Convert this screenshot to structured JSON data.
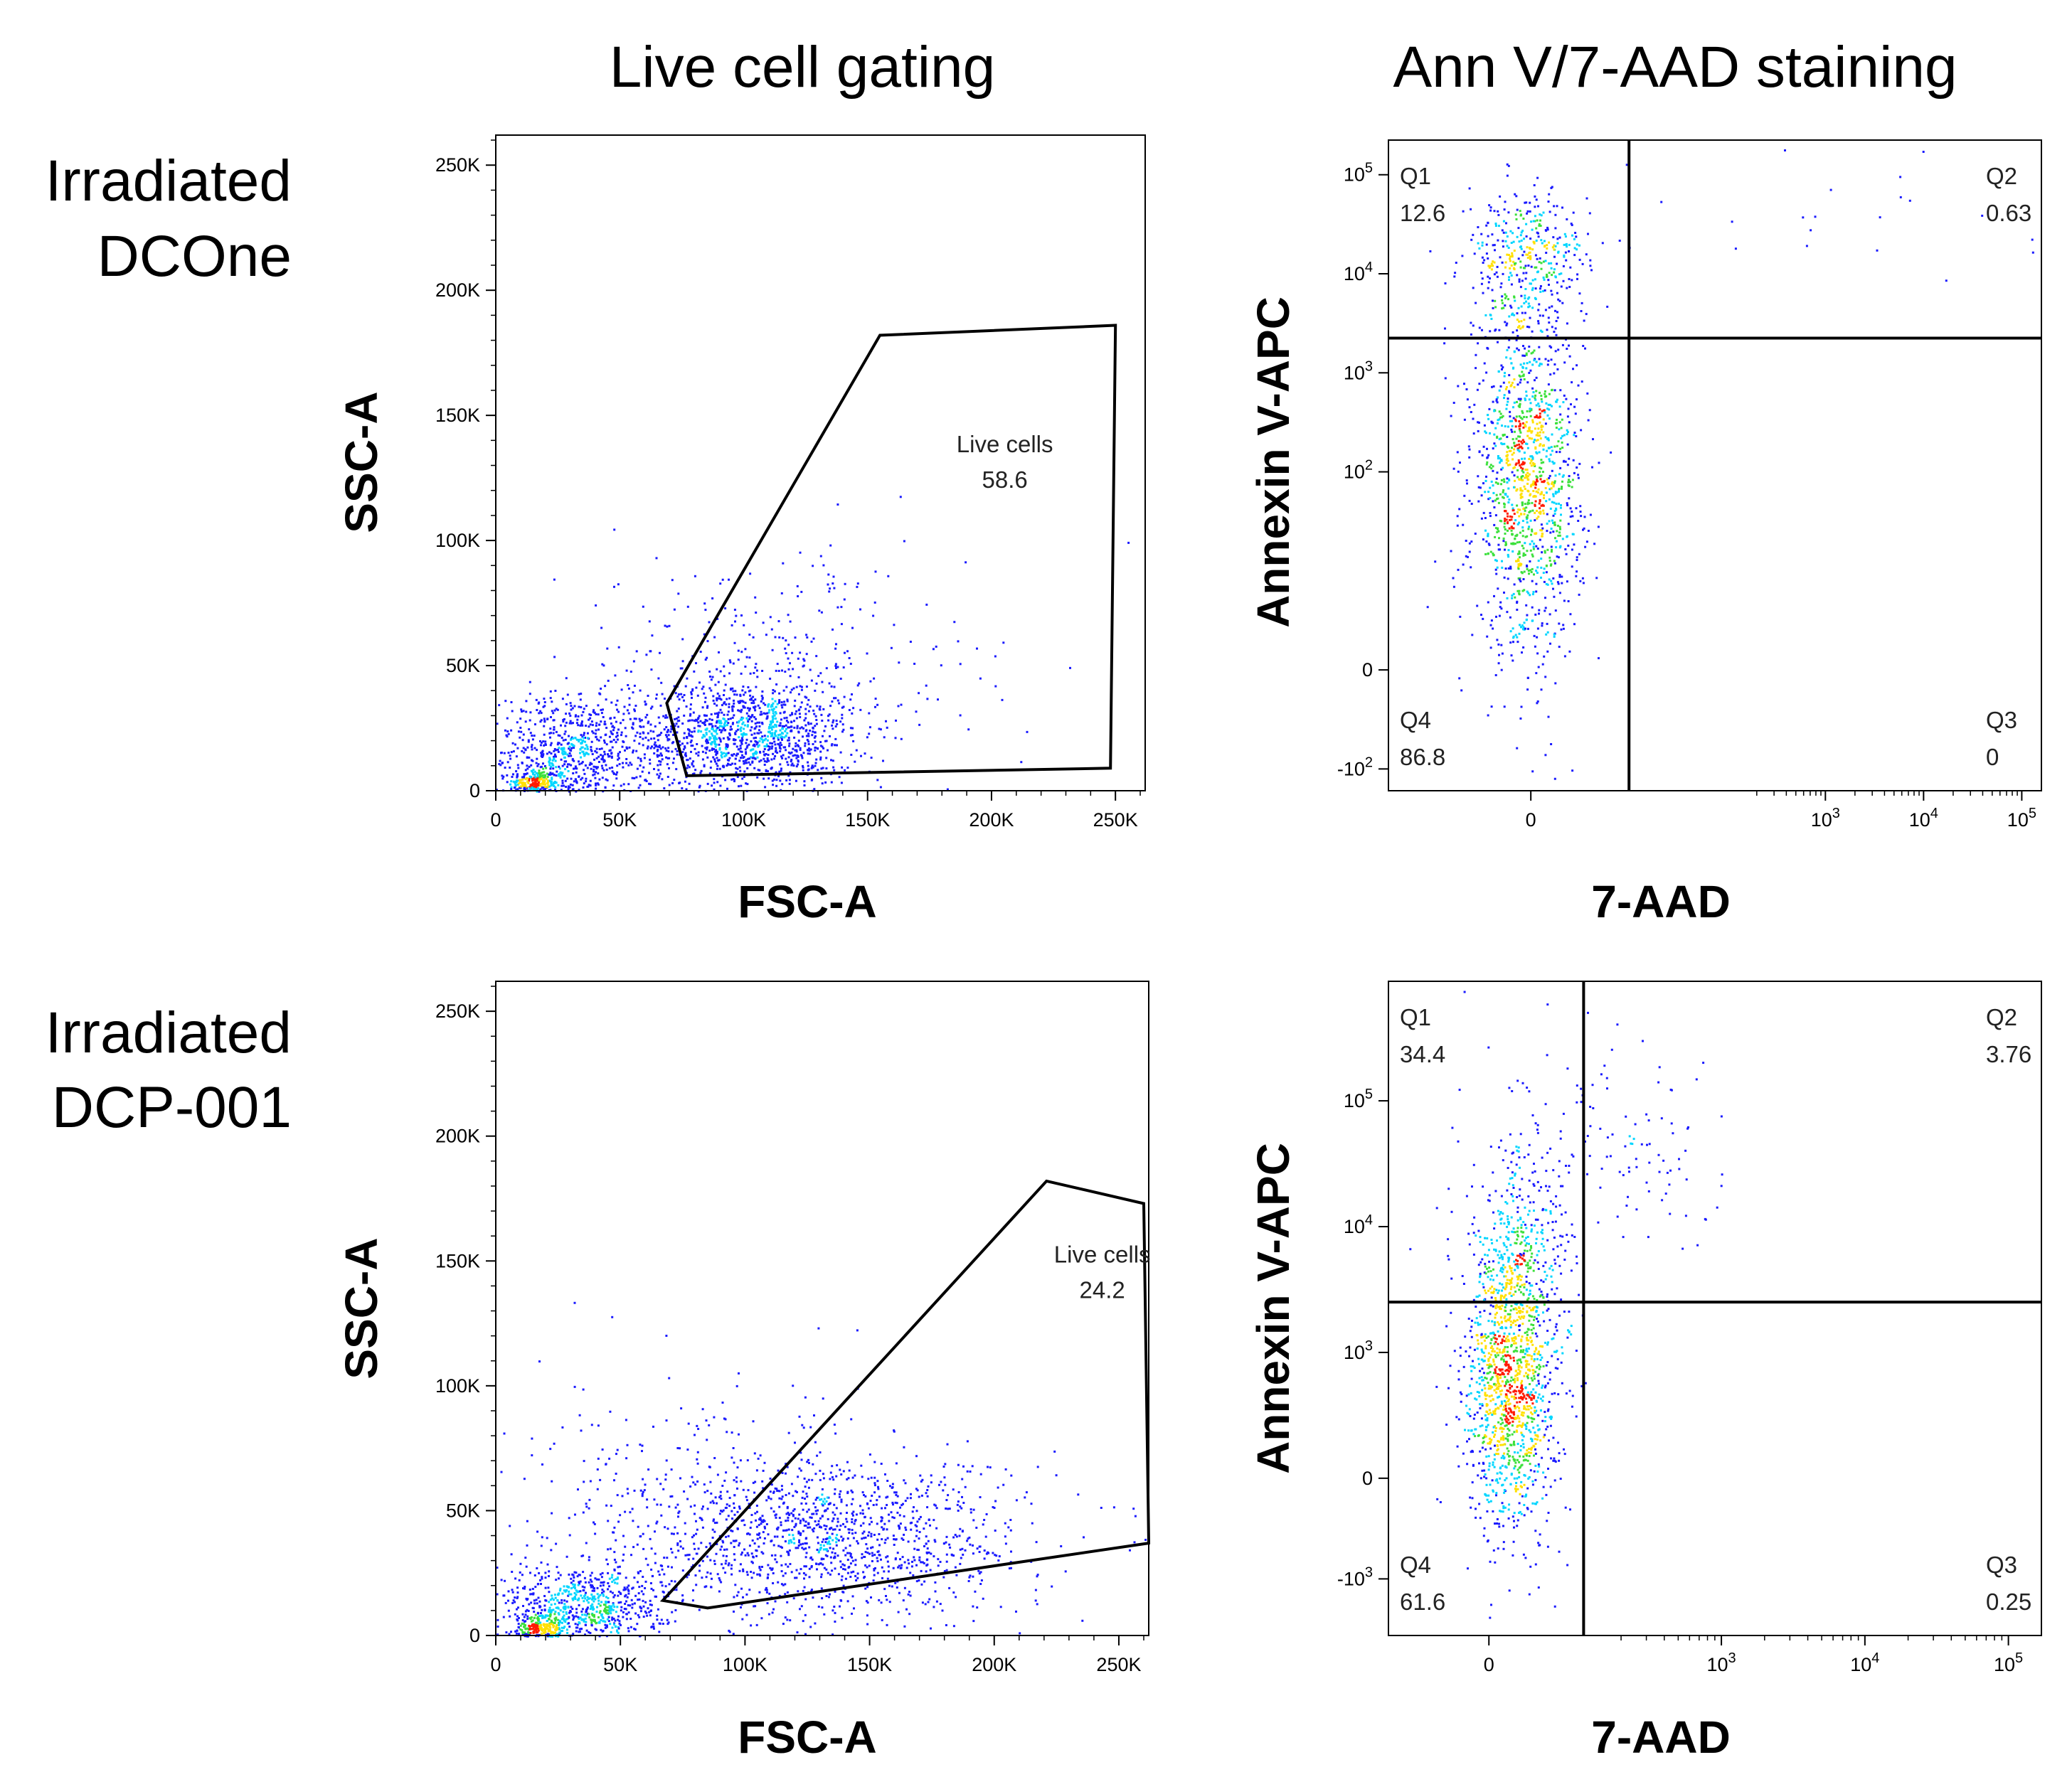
{
  "column_titles": {
    "live": "Live cell gating",
    "annv": "Ann V/7-AAD staining"
  },
  "rows": [
    {
      "label_line1": "Irradiated",
      "label_line2": "DCOne"
    },
    {
      "label_line1": "Irradiated",
      "label_line2": "DCP-001"
    }
  ],
  "colors": {
    "dot_low": "#1a1aff",
    "dot_mid": "#00d6ff",
    "dot_high": "#3be03b",
    "dot_peak": "#ffe000",
    "dot_max": "#ff1a00",
    "frame": "#000000"
  },
  "chart_data": [
    {
      "type": "scatter",
      "name": "DCOne live cell gating",
      "xlabel": "FSC-A",
      "ylabel": "SSC-A",
      "xlim": [
        0,
        262000
      ],
      "ylim": [
        0,
        262000
      ],
      "x_ticks": [
        {
          "v": 0,
          "label": "0"
        },
        {
          "v": 50000,
          "label": "50K"
        },
        {
          "v": 100000,
          "label": "100K"
        },
        {
          "v": 150000,
          "label": "150K"
        },
        {
          "v": 200000,
          "label": "200K"
        },
        {
          "v": 250000,
          "label": "250K"
        }
      ],
      "y_ticks": [
        {
          "v": 0,
          "label": "0"
        },
        {
          "v": 50000,
          "label": "50K"
        },
        {
          "v": 100000,
          "label": "100K"
        },
        {
          "v": 150000,
          "label": "150K"
        },
        {
          "v": 200000,
          "label": "200K"
        },
        {
          "v": 250000,
          "label": "250K"
        }
      ],
      "gate": {
        "name": "Live cells",
        "percent": "58.6",
        "polygon": [
          [
            69000,
            35000
          ],
          [
            155000,
            182000
          ],
          [
            250000,
            186000
          ],
          [
            248000,
            9000
          ],
          [
            77000,
            6000
          ]
        ]
      },
      "populations": [
        {
          "cx": 15000,
          "cy": 3000,
          "sx": 5000,
          "sy": 3000,
          "n": 260
        },
        {
          "cx": 30000,
          "cy": 15000,
          "sx": 16000,
          "sy": 12000,
          "n": 750
        },
        {
          "cx": 100000,
          "cy": 22000,
          "sx": 22000,
          "sy": 11000,
          "n": 1150
        },
        {
          "cx": 110000,
          "cy": 45000,
          "sx": 40000,
          "sy": 25000,
          "n": 380
        }
      ]
    },
    {
      "type": "scatter",
      "name": "DCOne Annexin V / 7-AAD",
      "xlabel": "7-AAD",
      "ylabel": "Annexin V-APC",
      "xlim": [
        -1.45,
        5.2
      ],
      "ylim": [
        -1.22,
        5.35
      ],
      "x_ticks": [
        {
          "v": 0,
          "label": "0"
        },
        {
          "v": 3,
          "label": "10^3"
        },
        {
          "v": 4,
          "label": "10^4"
        },
        {
          "v": 5,
          "label": "10^5"
        }
      ],
      "y_ticks": [
        {
          "v": -1,
          "label": "-10^2"
        },
        {
          "v": 0,
          "label": "0"
        },
        {
          "v": 2,
          "label": "10^2"
        },
        {
          "v": 3,
          "label": "10^3"
        },
        {
          "v": 4,
          "label": "10^4"
        },
        {
          "v": 5,
          "label": "10^5"
        }
      ],
      "quadrant_gate": {
        "x": 1.0,
        "y": 3.35
      },
      "quadrants": [
        {
          "id": "Q1",
          "value": "12.6",
          "pos": "top-left"
        },
        {
          "id": "Q2",
          "value": "0.63",
          "pos": "top-right"
        },
        {
          "id": "Q3",
          "value": "0",
          "pos": "bottom-right"
        },
        {
          "id": "Q4",
          "value": "86.8",
          "pos": "bottom-left"
        }
      ],
      "populations": [
        {
          "cx": -0.05,
          "cy": 1.9,
          "sx": 0.28,
          "sy": 0.85,
          "n": 1300
        },
        {
          "cx": -0.05,
          "cy": 4.15,
          "sx": 0.32,
          "sy": 0.35,
          "n": 380
        },
        {
          "cx": 3.0,
          "cy": 4.6,
          "sx": 1.1,
          "sy": 0.35,
          "n": 22
        }
      ]
    },
    {
      "type": "scatter",
      "name": "DCP-001 live cell gating",
      "xlabel": "FSC-A",
      "ylabel": "SSC-A",
      "xlim": [
        0,
        262000
      ],
      "ylim": [
        0,
        262000
      ],
      "x_ticks": [
        {
          "v": 0,
          "label": "0"
        },
        {
          "v": 50000,
          "label": "50K"
        },
        {
          "v": 100000,
          "label": "100K"
        },
        {
          "v": 150000,
          "label": "150K"
        },
        {
          "v": 200000,
          "label": "200K"
        },
        {
          "v": 250000,
          "label": "250K"
        }
      ],
      "y_ticks": [
        {
          "v": 0,
          "label": "0"
        },
        {
          "v": 50000,
          "label": "50K"
        },
        {
          "v": 100000,
          "label": "100K"
        },
        {
          "v": 150000,
          "label": "150K"
        },
        {
          "v": 200000,
          "label": "200K"
        },
        {
          "v": 250000,
          "label": "250K"
        }
      ],
      "gate": {
        "name": "Live cells",
        "percent": "24.2",
        "polygon": [
          [
            67000,
            14000
          ],
          [
            221000,
            182000
          ],
          [
            260000,
            173000
          ],
          [
            262000,
            37000
          ],
          [
            85000,
            11000
          ]
        ]
      },
      "populations": [
        {
          "cx": 18000,
          "cy": 3000,
          "sx": 6000,
          "sy": 3000,
          "n": 260
        },
        {
          "cx": 35000,
          "cy": 12000,
          "sx": 16000,
          "sy": 9000,
          "n": 700
        },
        {
          "cx": 135000,
          "cy": 40000,
          "sx": 38000,
          "sy": 16000,
          "n": 1200
        },
        {
          "cx": 80000,
          "cy": 45000,
          "sx": 40000,
          "sy": 28000,
          "n": 320
        }
      ]
    },
    {
      "type": "scatter",
      "name": "DCP-001 Annexin V / 7-AAD",
      "xlabel": "7-AAD",
      "ylabel": "Annexin V-APC",
      "xlim": [
        -0.7,
        3.85
      ],
      "ylim": [
        -1.25,
        3.95
      ],
      "x_ticks": [
        {
          "v": 0,
          "label": "0"
        },
        {
          "v": 1.62,
          "label": "10^3"
        },
        {
          "v": 2.62,
          "label": "10^4"
        },
        {
          "v": 3.62,
          "label": "10^5"
        }
      ],
      "y_ticks": [
        {
          "v": -0.8,
          "label": "-10^3"
        },
        {
          "v": 0,
          "label": "0"
        },
        {
          "v": 1.0,
          "label": "10^3"
        },
        {
          "v": 2.0,
          "label": "10^4"
        },
        {
          "v": 3.0,
          "label": "10^5"
        }
      ],
      "quadrant_gate": {
        "x": 0.66,
        "y": 1.4
      },
      "quadrants": [
        {
          "id": "Q1",
          "value": "34.4",
          "pos": "top-left"
        },
        {
          "id": "Q2",
          "value": "3.76",
          "pos": "top-right"
        },
        {
          "id": "Q3",
          "value": "0.25",
          "pos": "bottom-right"
        },
        {
          "id": "Q4",
          "value": "61.6",
          "pos": "bottom-left"
        }
      ],
      "populations": [
        {
          "cx": 0.15,
          "cy": 0.7,
          "sx": 0.16,
          "sy": 0.55,
          "n": 1200
        },
        {
          "cx": 0.2,
          "cy": 1.7,
          "sx": 0.18,
          "sy": 0.45,
          "n": 420
        },
        {
          "cx": 0.9,
          "cy": 2.6,
          "sx": 0.5,
          "sy": 0.4,
          "n": 130
        }
      ]
    }
  ]
}
